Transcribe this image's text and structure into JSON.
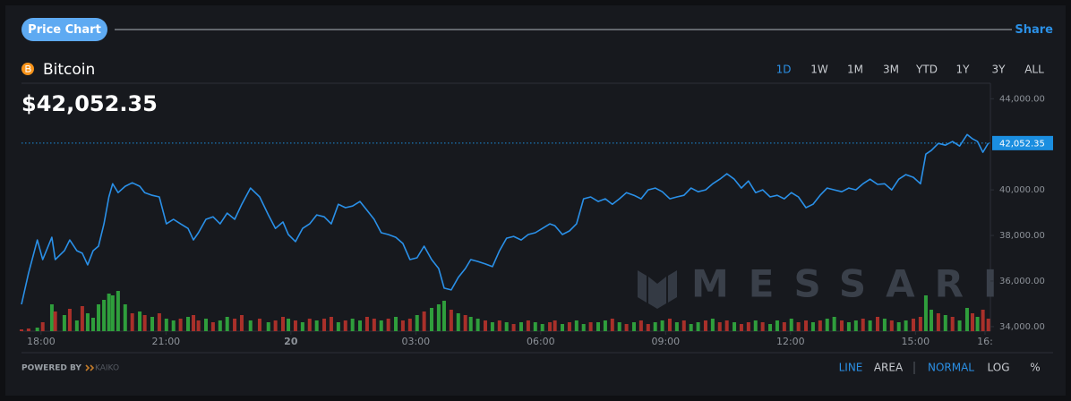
{
  "header": {
    "button": "Price Chart",
    "share": "Share"
  },
  "asset": {
    "name": "Bitcoin",
    "price": "$42,052.35"
  },
  "timeframes": {
    "options": [
      "1D",
      "1W",
      "1M",
      "3M",
      "YTD",
      "1Y",
      "3Y",
      "ALL"
    ],
    "active_index": 0
  },
  "chart_data": {
    "type": "line",
    "x": [
      -0.47,
      -0.3,
      -0.09,
      0.04,
      0.26,
      0.34,
      0.56,
      0.69,
      0.86,
      0.99,
      1.12,
      1.25,
      1.38,
      1.51,
      1.63,
      1.72,
      1.85,
      2.02,
      2.19,
      2.37,
      2.49,
      2.67,
      2.84,
      3.01,
      3.18,
      3.35,
      3.53,
      3.66,
      3.78,
      3.96,
      4.13,
      4.3,
      4.47,
      4.65,
      4.82,
      5.03,
      5.25,
      5.46,
      5.63,
      5.81,
      5.94,
      6.11,
      6.28,
      6.45,
      6.62,
      6.8,
      6.97,
      7.14,
      7.31,
      7.48,
      7.66,
      7.83,
      8.0,
      8.17,
      8.34,
      8.52,
      8.69,
      8.86,
      9.03,
      9.2,
      9.38,
      9.55,
      9.68,
      9.85,
      10.02,
      10.19,
      10.32,
      10.49,
      10.67,
      10.84,
      11.01,
      11.18,
      11.35,
      11.53,
      11.7,
      11.87,
      12.04,
      12.22,
      12.34,
      12.52,
      12.69,
      12.86,
      13.03,
      13.2,
      13.38,
      13.55,
      13.72,
      13.89,
      14.06,
      14.24,
      14.41,
      14.58,
      14.75,
      14.92,
      15.1,
      15.27,
      15.44,
      15.61,
      15.78,
      15.96,
      16.13,
      16.3,
      16.47,
      16.65,
      16.82,
      16.99,
      17.16,
      17.33,
      17.51,
      17.68,
      17.85,
      18.02,
      18.19,
      18.37,
      18.54,
      18.71,
      18.88,
      19.05,
      19.23,
      19.4,
      19.57,
      19.74,
      19.91,
      20.09,
      20.26,
      20.43,
      20.6,
      20.77,
      20.95,
      21.12,
      21.25,
      21.38,
      21.55,
      21.72,
      21.89,
      22.06,
      22.24,
      22.37,
      22.49,
      22.62,
      22.75
    ],
    "series": [
      {
        "color": "#2a90e8",
        "values": [
          34980,
          36350,
          37800,
          36940,
          37920,
          36940,
          37330,
          37800,
          37330,
          37220,
          36710,
          37330,
          37530,
          38510,
          39690,
          40270,
          39880,
          40160,
          40310,
          40160,
          39880,
          39760,
          39690,
          38510,
          38710,
          38510,
          38310,
          37800,
          38120,
          38710,
          38820,
          38510,
          38980,
          38710,
          39370,
          40080,
          39690,
          38900,
          38310,
          38590,
          38040,
          37730,
          38310,
          38510,
          38900,
          38820,
          38510,
          39370,
          39220,
          39290,
          39490,
          39100,
          38710,
          38120,
          38040,
          37920,
          37650,
          36940,
          37020,
          37530,
          36940,
          36550,
          35690,
          35610,
          36160,
          36550,
          36940,
          36860,
          36750,
          36630,
          37330,
          37880,
          37960,
          37800,
          38040,
          38120,
          38310,
          38510,
          38430,
          38040,
          38200,
          38510,
          39610,
          39690,
          39490,
          39610,
          39370,
          39610,
          39880,
          39760,
          39610,
          40000,
          40080,
          39920,
          39610,
          39690,
          39760,
          40080,
          39920,
          40000,
          40270,
          40470,
          40710,
          40470,
          40080,
          40390,
          39880,
          40000,
          39690,
          39760,
          39610,
          39880,
          39690,
          39220,
          39370,
          39760,
          40080,
          40000,
          39920,
          40080,
          40000,
          40270,
          40470,
          40240,
          40270,
          40000,
          40470,
          40670,
          40550,
          40270,
          41570,
          41730,
          42040,
          41960,
          42120,
          41920,
          42430,
          42240,
          42120,
          41650,
          42052.35
        ]
      }
    ],
    "volume": {
      "lim": [
        0,
        100
      ],
      "up_color": "#2f9e3c",
      "down_color": "#a9302a",
      "values": [
        2,
        3,
        4,
        10,
        30,
        22,
        18,
        25,
        12,
        28,
        20,
        15,
        30,
        35,
        42,
        40,
        45,
        30,
        20,
        22,
        18,
        16,
        20,
        14,
        12,
        14,
        16,
        18,
        12,
        14,
        10,
        12,
        16,
        14,
        18,
        12,
        14,
        10,
        12,
        16,
        14,
        12,
        10,
        14,
        12,
        14,
        16,
        10,
        12,
        14,
        12,
        16,
        14,
        12,
        14,
        16,
        12,
        14,
        18,
        22,
        26,
        30,
        34,
        24,
        20,
        18,
        16,
        14,
        12,
        10,
        12,
        10,
        8,
        10,
        12,
        10,
        8,
        10,
        12,
        8,
        10,
        12,
        8,
        10,
        10,
        12,
        14,
        10,
        8,
        10,
        12,
        8,
        10,
        12,
        14,
        10,
        12,
        8,
        10,
        12,
        14,
        10,
        12,
        10,
        8,
        10,
        12,
        10,
        8,
        12,
        10,
        14,
        10,
        12,
        10,
        12,
        14,
        16,
        12,
        10,
        12,
        14,
        12,
        16,
        14,
        12,
        10,
        12,
        14,
        16,
        40,
        24,
        20,
        18,
        16,
        12,
        26,
        20,
        16,
        24,
        14
      ],
      "up": [
        false,
        false,
        true,
        false,
        true,
        false,
        true,
        false,
        true,
        false,
        true,
        true,
        true,
        true,
        true,
        true,
        true,
        true,
        false,
        true,
        false,
        true,
        false,
        true,
        true,
        false,
        true,
        false,
        false,
        true,
        false,
        true,
        true,
        false,
        false,
        true,
        false,
        true,
        false,
        false,
        true,
        false,
        true,
        false,
        true,
        false,
        false,
        true,
        false,
        true,
        true,
        false,
        false,
        true,
        false,
        true,
        false,
        false,
        true,
        false,
        true,
        true,
        true,
        false,
        true,
        false,
        true,
        true,
        false,
        true,
        false,
        true,
        false,
        true,
        false,
        true,
        true,
        false,
        false,
        true,
        false,
        true,
        true,
        false,
        true,
        true,
        false,
        true,
        false,
        true,
        false,
        false,
        true,
        true,
        false,
        true,
        false,
        true,
        true,
        false,
        true,
        false,
        false,
        true,
        false,
        false,
        true,
        false,
        true,
        true,
        false,
        true,
        false,
        false,
        true,
        false,
        true,
        true,
        false,
        true,
        true,
        false,
        true,
        false,
        true,
        false,
        true,
        true,
        false,
        false,
        true,
        true,
        false,
        true,
        false,
        true,
        true,
        false,
        true,
        false,
        false
      ]
    },
    "xlim": [
      -0.47,
      22.8
    ],
    "xticks": [
      {
        "value": 0,
        "label": "18:00"
      },
      {
        "value": 3,
        "label": "21:00"
      },
      {
        "value": 6,
        "label": "20"
      },
      {
        "value": 9,
        "label": "03:00"
      },
      {
        "value": 12,
        "label": "06:00"
      },
      {
        "value": 15,
        "label": "09:00"
      },
      {
        "value": 18,
        "label": "12:00"
      },
      {
        "value": 21,
        "label": "15:00"
      },
      {
        "value": 22.67,
        "label": "16:"
      }
    ],
    "ylim": [
      33800,
      44600
    ],
    "yticks": [
      {
        "value": 34000,
        "label": "34,000.00"
      },
      {
        "value": 36000,
        "label": "36,000.00"
      },
      {
        "value": 38000,
        "label": "38,000.00"
      },
      {
        "value": 40000,
        "label": "40,000.00"
      },
      {
        "value": 44000,
        "label": "44,000.00"
      }
    ],
    "last_price": {
      "value": 42052.35,
      "label": "42,052.35",
      "color": "#1b8ee0"
    },
    "watermark": "MESSARI"
  },
  "footer": {
    "powered_by": "POWERED BY",
    "provider": "KAIKO",
    "chart_styles": [
      "LINE",
      "AREA"
    ],
    "active_style": 0,
    "scales": [
      "NORMAL",
      "LOG",
      "%"
    ],
    "active_scale": 0
  }
}
